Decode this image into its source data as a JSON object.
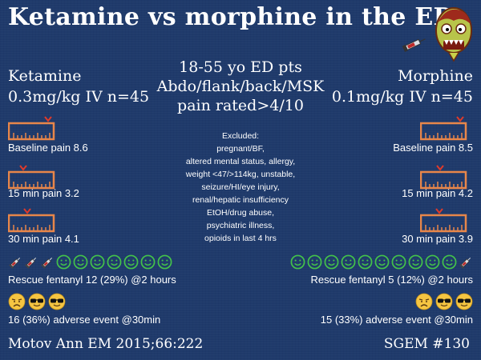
{
  "title": "Ketamine vs morphine in the ED",
  "left": {
    "drug": "Ketamine",
    "dose": "0.3mg/kg IV n=45",
    "baseline": "Baseline pain 8.6",
    "min15": "15 min pain 3.2",
    "min30": "30 min pain 4.1",
    "rescue": "Rescue fentanyl 12 (29%) @2 hours",
    "adverse": "16 (36%) adverse event @30min"
  },
  "right": {
    "drug": "Morphine",
    "dose": "0.1mg/kg IV n=45",
    "baseline": "Baseline pain 8.5",
    "min15": "15 min pain 4.2",
    "min30": "30 min pain 3.9",
    "rescue": "Rescue fentanyl 5 (12%) @2 hours",
    "adverse": "15 (33%) adverse event @30min"
  },
  "population": {
    "line1": "18-55 yo ED pts",
    "line2": "Abdo/flank/back/MSK",
    "line3": "pain rated>4/10"
  },
  "excluded": {
    "heading": "Excluded:",
    "items": [
      "pregnant/BF,",
      "altered mental status, allergy,",
      "weight <47/>114kg, unstable,",
      "seizure/HI/eye injury,",
      "renal/hepatic insufficiency",
      "EtOH/drug abuse,",
      "psychiatric illness,",
      "opioids in last 4 hrs"
    ]
  },
  "footer": {
    "citation": "Motov Ann EM 2015;66:222",
    "tag": "SGEM #130"
  },
  "colors": {
    "background": "#1f3a6b",
    "ruler": "#e8864a",
    "marker": "#e03a2a",
    "smiley": "#43c24a",
    "syringe": "#d9dde3",
    "emoji": "#f5c542"
  }
}
